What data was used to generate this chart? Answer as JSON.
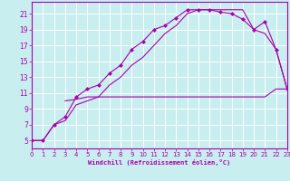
{
  "xlabel": "Windchill (Refroidissement éolien,°C)",
  "bg_color": "#c8eef0",
  "line_color": "#aa00aa",
  "grid_color": "#ffffff",
  "xmin": 0,
  "xmax": 23,
  "ymin": 4,
  "ymax": 22.5,
  "yticks": [
    5,
    7,
    9,
    11,
    13,
    15,
    17,
    19,
    21
  ],
  "xticks": [
    0,
    1,
    2,
    3,
    4,
    5,
    6,
    7,
    8,
    9,
    10,
    11,
    12,
    13,
    14,
    15,
    16,
    17,
    18,
    19,
    20,
    21,
    22,
    23
  ],
  "curve1_x": [
    0,
    1,
    2,
    3,
    4,
    5,
    6,
    7,
    8,
    9,
    10,
    11,
    12,
    13,
    14,
    15,
    16,
    17,
    18,
    19,
    20,
    21,
    22,
    23
  ],
  "curve1_y": [
    5.0,
    5.0,
    7.0,
    8.0,
    10.5,
    11.5,
    12.0,
    13.5,
    14.5,
    16.5,
    17.5,
    19.0,
    19.5,
    20.5,
    21.5,
    21.5,
    21.5,
    21.2,
    21.0,
    20.3,
    19.0,
    20.0,
    16.5,
    11.5
  ],
  "curve2_x": [
    0,
    1,
    2,
    3,
    4,
    5,
    6,
    7,
    8,
    9,
    10,
    11,
    12,
    13,
    14,
    15,
    16,
    17,
    18,
    19,
    20,
    21,
    22,
    23
  ],
  "curve2_y": [
    5.0,
    5.0,
    7.0,
    7.5,
    9.5,
    10.0,
    10.5,
    12.0,
    13.0,
    14.5,
    15.5,
    17.0,
    18.5,
    19.5,
    21.0,
    21.5,
    21.5,
    21.5,
    21.5,
    21.5,
    19.0,
    18.5,
    16.5,
    11.5
  ],
  "curve3_x": [
    3,
    4,
    5,
    6,
    7,
    8,
    9,
    10,
    11,
    12,
    13,
    14,
    15,
    16,
    17,
    18,
    19,
    20,
    21,
    22,
    23
  ],
  "curve3_y": [
    10.0,
    10.2,
    10.5,
    10.5,
    10.5,
    10.5,
    10.5,
    10.5,
    10.5,
    10.5,
    10.5,
    10.5,
    10.5,
    10.5,
    10.5,
    10.5,
    10.5,
    10.5,
    10.5,
    11.5,
    11.5
  ]
}
